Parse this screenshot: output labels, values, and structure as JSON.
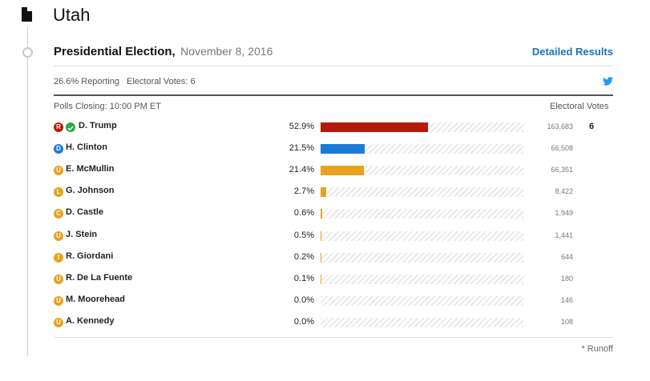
{
  "state": {
    "title": "Utah"
  },
  "race": {
    "title": "Presidential Election,",
    "date": "November 8, 2016",
    "detailed_link": "Detailed Results",
    "reporting": "26.6% Reporting",
    "electoral_votes_total": "Electoral Votes: 6",
    "polls_closing": "Polls Closing: 10:00 PM ET",
    "electoral_votes_header": "Electoral Votes"
  },
  "colors": {
    "R": "#b31c0c",
    "D": "#1a7bd6",
    "U": "#e8a21f",
    "L": "#e8a21f",
    "C": "#e8a21f",
    "I": "#e8a21f",
    "check": "#2aa845",
    "link": "#1a73ba"
  },
  "candidates": [
    {
      "party": "R",
      "name": "D. Trump",
      "pct_label": "52.9%",
      "pct": 52.9,
      "votes": "163,683",
      "ev": "6",
      "winner": true
    },
    {
      "party": "D",
      "name": "H. Clinton",
      "pct_label": "21.5%",
      "pct": 21.5,
      "votes": "66,508",
      "ev": "",
      "winner": false
    },
    {
      "party": "U",
      "name": "E. McMullin",
      "pct_label": "21.4%",
      "pct": 21.4,
      "votes": "66,351",
      "ev": "",
      "winner": false
    },
    {
      "party": "L",
      "name": "G. Johnson",
      "pct_label": "2.7%",
      "pct": 2.7,
      "votes": "8,422",
      "ev": "",
      "winner": false
    },
    {
      "party": "C",
      "name": "D. Castle",
      "pct_label": "0.6%",
      "pct": 0.6,
      "votes": "1,949",
      "ev": "",
      "winner": false
    },
    {
      "party": "U",
      "name": "J. Stein",
      "pct_label": "0.5%",
      "pct": 0.5,
      "votes": "1,441",
      "ev": "",
      "winner": false
    },
    {
      "party": "I",
      "name": "R. Giordani",
      "pct_label": "0.2%",
      "pct": 0.2,
      "votes": "644",
      "ev": "",
      "winner": false
    },
    {
      "party": "U",
      "name": "R. De La Fuente",
      "pct_label": "0.1%",
      "pct": 0.1,
      "votes": "180",
      "ev": "",
      "winner": false
    },
    {
      "party": "U",
      "name": "M. Moorehead",
      "pct_label": "0.0%",
      "pct": 0.0,
      "votes": "146",
      "ev": "",
      "winner": false
    },
    {
      "party": "U",
      "name": "A. Kennedy",
      "pct_label": "0.0%",
      "pct": 0.0,
      "votes": "108",
      "ev": "",
      "winner": false
    }
  ],
  "footnote": "* Runoff"
}
